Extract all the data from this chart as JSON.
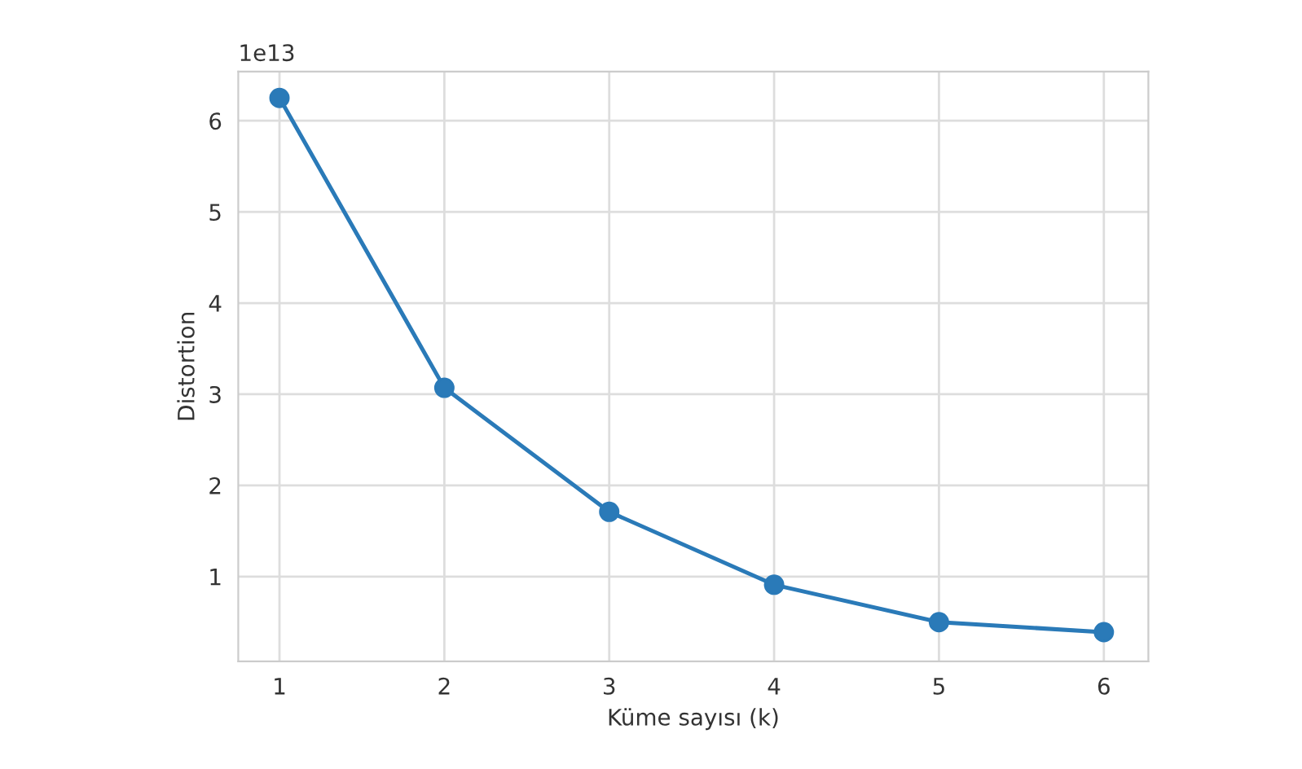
{
  "chart_data": {
    "type": "line",
    "xlabel": "Küme sayısı (k)",
    "ylabel": "Distortion",
    "x": [
      1,
      2,
      3,
      4,
      5,
      6
    ],
    "series": [
      {
        "color": "#2a7ab8",
        "values": [
          6.25,
          3.07,
          1.71,
          0.91,
          0.5,
          0.39
        ]
      }
    ],
    "xlim": [
      0.75,
      6.27
    ],
    "xticks": [
      1,
      2,
      3,
      4,
      5,
      6
    ],
    "ylim": [
      0.07,
      6.54
    ],
    "yticks": [
      1,
      2,
      3,
      4,
      5,
      6
    ],
    "annotations": [
      "1e13"
    ],
    "grid": true,
    "marker": "circle",
    "line_style": "solid"
  }
}
